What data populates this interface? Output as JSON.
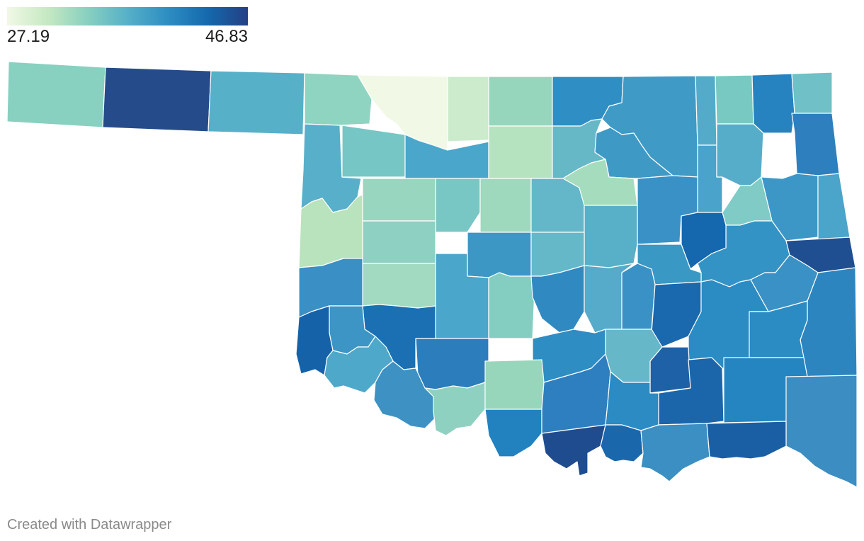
{
  "legend": {
    "min": "27.19",
    "max": "46.83",
    "colors": [
      "#f1f8e6",
      "#c6e9c2",
      "#88d0c0",
      "#56b0c8",
      "#2e8ec2",
      "#1469ad",
      "#243f85"
    ]
  },
  "map": {
    "state": "Oklahoma",
    "counties": [
      {
        "fill": "#88d0c0"
      },
      {
        "fill": "#254b8a"
      },
      {
        "fill": "#56b0c8"
      },
      {
        "fill": "#8fd4c0"
      },
      {
        "fill": "#f1f8e6"
      },
      {
        "fill": "#cbebcc"
      },
      {
        "fill": "#95d6bd"
      },
      {
        "fill": "#2f8ec3"
      },
      {
        "fill": "#3f9ac6"
      },
      {
        "fill": "#54abc9"
      },
      {
        "fill": "#78c9c1"
      },
      {
        "fill": "#2683c0"
      },
      {
        "fill": "#6fc0c7"
      },
      {
        "fill": "#58afc9"
      },
      {
        "fill": "#76c6c5"
      },
      {
        "fill": "#4aa6cb"
      },
      {
        "fill": "#b6e3bf"
      },
      {
        "fill": "#66b8c7"
      },
      {
        "fill": "#3f99c5"
      },
      {
        "fill": "#4aa3ca"
      },
      {
        "fill": "#56adc9"
      },
      {
        "fill": "#2e7fbe"
      },
      {
        "fill": "#b9e3bd"
      },
      {
        "fill": "#98d6bf"
      },
      {
        "fill": "#78c7c4"
      },
      {
        "fill": "#9ed9bd"
      },
      {
        "fill": "#63b7c8"
      },
      {
        "fill": "#a5dcbd"
      },
      {
        "fill": "#8ed0c2"
      },
      {
        "fill": "#a1dac0"
      },
      {
        "fill": "#3a91c6"
      },
      {
        "fill": "#3d97c6"
      },
      {
        "fill": "#4ba4ca"
      },
      {
        "fill": "#80cbc5"
      },
      {
        "fill": "#3493c5"
      },
      {
        "fill": "#1567ae"
      },
      {
        "fill": "#58b0c8"
      },
      {
        "fill": "#3c97c5"
      },
      {
        "fill": "#64b8c8"
      },
      {
        "fill": "#3a98c5"
      },
      {
        "fill": "#3a8fc4"
      },
      {
        "fill": "#4ba6cb"
      },
      {
        "fill": "#83cec1"
      },
      {
        "fill": "#3189c2"
      },
      {
        "fill": "#55abc9"
      },
      {
        "fill": "#3991c5"
      },
      {
        "fill": "#1a68ad"
      },
      {
        "fill": "#1f4f90"
      },
      {
        "fill": "#2d85c0"
      },
      {
        "fill": "#3991c5"
      },
      {
        "fill": "#2b8cc3"
      },
      {
        "fill": "#2b8cc3"
      },
      {
        "fill": "#1f61a6"
      },
      {
        "fill": "#66b8c8"
      },
      {
        "fill": "#2e8dc3"
      },
      {
        "fill": "#2b7dbc"
      },
      {
        "fill": "#1a70b3"
      },
      {
        "fill": "#3c95c5"
      },
      {
        "fill": "#1662a9"
      },
      {
        "fill": "#4ea8c9"
      },
      {
        "fill": "#3d92c3"
      },
      {
        "fill": "#8fd1c0"
      },
      {
        "fill": "#98d6bc"
      },
      {
        "fill": "#2282c0"
      },
      {
        "fill": "#2e7fbf"
      },
      {
        "fill": "#2b8bc2"
      },
      {
        "fill": "#1b66ab"
      },
      {
        "fill": "#2485c1"
      },
      {
        "fill": "#3c8dc1"
      },
      {
        "fill": "#1f4c8e"
      },
      {
        "fill": "#1a67ac"
      },
      {
        "fill": "#3b8fc3"
      },
      {
        "fill": "#1a5fa4"
      },
      {
        "fill": "#1d5c9f"
      },
      {
        "fill": "#214a8a"
      },
      {
        "fill": "#3790c5"
      },
      {
        "fill": "#1c5fa3"
      }
    ]
  },
  "footer": {
    "credit": "Created with Datawrapper"
  }
}
